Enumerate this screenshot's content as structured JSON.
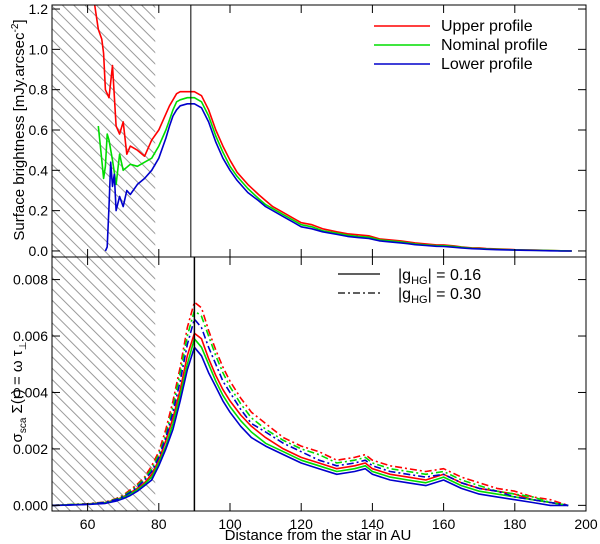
{
  "chart_data": [
    {
      "type": "line",
      "panel": "top",
      "ylabel": "Surface brightness [mJy.arcsec^-2]",
      "ylabel_main": "Surface brightness [mJy.arcsec",
      "ylabel_sup": "-2",
      "ylabel_end": "]",
      "xlim": [
        50,
        200
      ],
      "ylim": [
        -0.03,
        1.22
      ],
      "yticks": [
        0.0,
        0.2,
        0.4,
        0.6,
        0.8,
        1.0,
        1.2
      ],
      "ytick_labels": [
        "0.0",
        "0.2",
        "0.4",
        "0.6",
        "0.8",
        "1.0",
        "1.2"
      ],
      "hatched_region": [
        50,
        79
      ],
      "vline_x": 89,
      "legend": [
        {
          "label": "Upper profile",
          "color": "#ff0000"
        },
        {
          "label": "Nominal profile",
          "color": "#00dd00"
        },
        {
          "label": "Lower profile",
          "color": "#0000cc"
        }
      ],
      "series": [
        {
          "name": "Upper profile",
          "color": "#ff0000",
          "x": [
            62,
            63,
            64,
            64.5,
            65,
            66,
            67,
            68,
            69,
            70,
            71,
            72,
            74,
            76,
            78,
            80,
            82,
            83,
            84,
            85,
            86,
            88,
            90,
            92,
            94,
            96,
            98,
            100,
            102,
            105,
            108,
            110,
            112,
            115,
            118,
            120,
            123,
            126,
            130,
            133,
            136,
            139,
            142,
            145,
            148,
            150,
            152,
            155,
            158,
            160,
            163,
            165,
            168,
            170,
            172,
            175,
            178,
            180,
            183,
            186,
            190,
            193,
            196
          ],
          "y": [
            1.22,
            1.1,
            1.05,
            0.98,
            0.8,
            0.76,
            0.92,
            0.62,
            0.58,
            0.64,
            0.48,
            0.52,
            0.5,
            0.47,
            0.55,
            0.6,
            0.68,
            0.72,
            0.75,
            0.78,
            0.79,
            0.79,
            0.79,
            0.77,
            0.7,
            0.6,
            0.52,
            0.45,
            0.39,
            0.33,
            0.28,
            0.25,
            0.22,
            0.19,
            0.16,
            0.14,
            0.13,
            0.11,
            0.095,
            0.085,
            0.08,
            0.075,
            0.06,
            0.055,
            0.05,
            0.045,
            0.04,
            0.035,
            0.03,
            0.03,
            0.025,
            0.02,
            0.015,
            0.015,
            0.012,
            0.01,
            0.008,
            0.006,
            0.005,
            0.004,
            0.002,
            0.001,
            0.0
          ]
        },
        {
          "name": "Nominal profile",
          "color": "#00dd00",
          "x": [
            63,
            64,
            64.5,
            65,
            65.5,
            66,
            67,
            68,
            69,
            70,
            72,
            74,
            76,
            78,
            80,
            82,
            83,
            84,
            85,
            86,
            88,
            90,
            92,
            94,
            96,
            98,
            100,
            102,
            105,
            108,
            110,
            112,
            115,
            118,
            120,
            123,
            126,
            130,
            133,
            136,
            139,
            142,
            145,
            148,
            150,
            152,
            155,
            158,
            160,
            163,
            165,
            168,
            170,
            172,
            175,
            178,
            180,
            183,
            186,
            190,
            193,
            196
          ],
          "y": [
            0.62,
            0.45,
            0.36,
            0.42,
            0.58,
            0.55,
            0.45,
            0.33,
            0.48,
            0.4,
            0.43,
            0.42,
            0.44,
            0.46,
            0.52,
            0.6,
            0.65,
            0.7,
            0.74,
            0.75,
            0.76,
            0.76,
            0.74,
            0.67,
            0.57,
            0.49,
            0.42,
            0.37,
            0.31,
            0.26,
            0.23,
            0.21,
            0.18,
            0.15,
            0.13,
            0.12,
            0.1,
            0.088,
            0.078,
            0.072,
            0.068,
            0.055,
            0.05,
            0.045,
            0.04,
            0.035,
            0.03,
            0.026,
            0.026,
            0.022,
            0.018,
            0.013,
            0.012,
            0.01,
            0.008,
            0.006,
            0.005,
            0.004,
            0.003,
            0.002,
            0.001,
            0.0
          ]
        },
        {
          "name": "Lower profile",
          "color": "#0000cc",
          "x": [
            65,
            65.5,
            66,
            66.5,
            67,
            67.5,
            68,
            69,
            70,
            71,
            72,
            74,
            76,
            78,
            80,
            82,
            83,
            84,
            85,
            86,
            88,
            90,
            92,
            94,
            96,
            98,
            100,
            102,
            105,
            108,
            110,
            112,
            115,
            118,
            120,
            123,
            126,
            130,
            133,
            136,
            139,
            142,
            145,
            148,
            150,
            152,
            155,
            158,
            160,
            163,
            165,
            168,
            170,
            172,
            175,
            178,
            180,
            183,
            186,
            190,
            193,
            196
          ],
          "y": [
            0.0,
            0.02,
            0.22,
            0.44,
            0.32,
            0.38,
            0.2,
            0.27,
            0.22,
            0.3,
            0.28,
            0.33,
            0.36,
            0.4,
            0.46,
            0.56,
            0.62,
            0.67,
            0.7,
            0.72,
            0.73,
            0.73,
            0.71,
            0.64,
            0.54,
            0.46,
            0.4,
            0.35,
            0.29,
            0.25,
            0.22,
            0.2,
            0.17,
            0.14,
            0.12,
            0.11,
            0.095,
            0.082,
            0.072,
            0.066,
            0.062,
            0.05,
            0.045,
            0.04,
            0.036,
            0.031,
            0.027,
            0.023,
            0.022,
            0.018,
            0.015,
            0.011,
            0.01,
            0.008,
            0.006,
            0.005,
            0.004,
            0.003,
            0.002,
            0.001,
            0.0,
            0.0
          ]
        }
      ]
    },
    {
      "type": "line",
      "panel": "bottom",
      "xlabel": "Distance from the star in AU",
      "ylabel": "σ_sca Σ(r) = ω τ_⊥",
      "ylabel_parts": {
        "sigma": "σ",
        "sca": "sca",
        "mid": " Σ(r) = ω τ",
        "perp": "⊥"
      },
      "xlim": [
        50,
        200
      ],
      "ylim": [
        -0.0002,
        0.0088
      ],
      "xticks": [
        60,
        80,
        100,
        120,
        140,
        160,
        180,
        200
      ],
      "xtick_labels": [
        "60",
        "80",
        "100",
        "120",
        "140",
        "160",
        "180",
        "200"
      ],
      "yticks": [
        0.0,
        0.002,
        0.004,
        0.006,
        0.008
      ],
      "ytick_labels": [
        "0.000",
        "0.002",
        "0.004",
        "0.006",
        "0.008"
      ],
      "hatched_region": [
        50,
        79
      ],
      "vline_x": 90,
      "legend": [
        {
          "style": "solid",
          "prefix": "|g",
          "sub": "HG",
          "suffix": "| = 0.16"
        },
        {
          "style": "dashdot",
          "prefix": "|g",
          "sub": "HG",
          "suffix": "| = 0.30"
        }
      ],
      "series": [
        {
          "name": "Upper, |gHG|=0.16",
          "color": "#ff0000",
          "dash": "solid",
          "x": [
            50,
            55,
            60,
            65,
            68,
            70,
            72,
            74,
            76,
            78,
            80,
            82,
            84,
            86,
            88,
            90,
            92,
            94,
            96,
            98,
            100,
            103,
            106,
            110,
            115,
            120,
            125,
            130,
            135,
            138,
            140,
            145,
            150,
            155,
            160,
            165,
            170,
            175,
            180,
            185,
            190,
            195
          ],
          "y": [
            0.0,
            2e-05,
            5e-05,
            0.0001,
            0.0002,
            0.0003,
            0.00045,
            0.0006,
            0.0008,
            0.0011,
            0.0016,
            0.0023,
            0.0031,
            0.0041,
            0.0053,
            0.0061,
            0.0059,
            0.0052,
            0.0046,
            0.0041,
            0.0037,
            0.0032,
            0.0028,
            0.0024,
            0.002,
            0.0017,
            0.0015,
            0.0013,
            0.0014,
            0.0015,
            0.0013,
            0.0011,
            0.001,
            0.0009,
            0.0011,
            0.0008,
            0.0006,
            0.0005,
            0.0004,
            0.0002,
            0.0001,
            0.0
          ]
        },
        {
          "name": "Nominal, |gHG|=0.16",
          "color": "#00dd00",
          "dash": "solid",
          "x": [
            50,
            55,
            60,
            65,
            68,
            70,
            72,
            74,
            76,
            78,
            80,
            82,
            84,
            86,
            88,
            90,
            92,
            94,
            96,
            98,
            100,
            103,
            106,
            110,
            115,
            120,
            125,
            130,
            135,
            138,
            140,
            145,
            150,
            155,
            160,
            165,
            170,
            175,
            180,
            185,
            190,
            195
          ],
          "y": [
            0.0,
            2e-05,
            4e-05,
            9e-05,
            0.00018,
            0.00028,
            0.0004,
            0.00055,
            0.00075,
            0.001,
            0.0015,
            0.0021,
            0.0029,
            0.0039,
            0.005,
            0.0059,
            0.0056,
            0.005,
            0.0044,
            0.0039,
            0.0035,
            0.003,
            0.0026,
            0.0022,
            0.0019,
            0.0016,
            0.0014,
            0.0012,
            0.0013,
            0.0014,
            0.0012,
            0.001,
            0.0009,
            0.0008,
            0.001,
            0.0007,
            0.0005,
            0.0004,
            0.0003,
            0.0002,
            0.0001,
            0.0
          ]
        },
        {
          "name": "Lower, |gHG|=0.16",
          "color": "#0000cc",
          "dash": "solid",
          "x": [
            50,
            55,
            60,
            65,
            68,
            70,
            72,
            74,
            76,
            78,
            80,
            82,
            84,
            86,
            88,
            90,
            92,
            94,
            96,
            98,
            100,
            103,
            106,
            110,
            115,
            120,
            125,
            130,
            135,
            138,
            140,
            145,
            150,
            155,
            160,
            165,
            170,
            175,
            180,
            185,
            190,
            195
          ],
          "y": [
            0.0,
            1e-05,
            3e-05,
            7e-05,
            0.00015,
            0.00024,
            0.00035,
            0.0005,
            0.0007,
            0.0009,
            0.0014,
            0.002,
            0.0027,
            0.0037,
            0.0048,
            0.0056,
            0.0053,
            0.0047,
            0.0042,
            0.0037,
            0.0033,
            0.0028,
            0.0024,
            0.0021,
            0.0018,
            0.0015,
            0.0013,
            0.0011,
            0.0012,
            0.0013,
            0.0011,
            0.0009,
            0.0008,
            0.0007,
            0.0009,
            0.0006,
            0.0004,
            0.0003,
            0.0002,
            0.0001,
            0.0,
            0.0
          ]
        },
        {
          "name": "Upper, |gHG|=0.30",
          "color": "#ff0000",
          "dash": "dashdot",
          "x": [
            50,
            55,
            60,
            65,
            68,
            70,
            72,
            74,
            76,
            78,
            80,
            82,
            84,
            86,
            88,
            90,
            92,
            94,
            96,
            98,
            100,
            103,
            106,
            110,
            115,
            120,
            125,
            130,
            135,
            138,
            140,
            145,
            150,
            155,
            160,
            165,
            170,
            175,
            180,
            185,
            190,
            195
          ],
          "y": [
            0.0,
            3e-05,
            6e-05,
            0.00012,
            0.00024,
            0.00036,
            0.00055,
            0.00075,
            0.001,
            0.0014,
            0.0019,
            0.0027,
            0.0037,
            0.0049,
            0.0063,
            0.0072,
            0.007,
            0.0062,
            0.0055,
            0.0049,
            0.0044,
            0.0038,
            0.0033,
            0.0029,
            0.0024,
            0.0021,
            0.0019,
            0.0016,
            0.0017,
            0.0018,
            0.0016,
            0.0014,
            0.0013,
            0.0012,
            0.0013,
            0.001,
            0.0008,
            0.0006,
            0.0005,
            0.0003,
            0.0002,
            0.0
          ]
        },
        {
          "name": "Nominal, |gHG|=0.30",
          "color": "#00dd00",
          "dash": "dashdot",
          "x": [
            50,
            55,
            60,
            65,
            68,
            70,
            72,
            74,
            76,
            78,
            80,
            82,
            84,
            86,
            88,
            90,
            92,
            94,
            96,
            98,
            100,
            103,
            106,
            110,
            115,
            120,
            125,
            130,
            135,
            138,
            140,
            145,
            150,
            155,
            160,
            165,
            170,
            175,
            180,
            185,
            190,
            195
          ],
          "y": [
            0.0,
            3e-05,
            5e-05,
            0.00011,
            0.00022,
            0.00034,
            0.0005,
            0.0007,
            0.00095,
            0.0013,
            0.0018,
            0.0025,
            0.0035,
            0.0047,
            0.006,
            0.0069,
            0.0067,
            0.006,
            0.0053,
            0.0047,
            0.0042,
            0.0036,
            0.0031,
            0.0027,
            0.0023,
            0.002,
            0.0018,
            0.0015,
            0.0016,
            0.0017,
            0.0015,
            0.0013,
            0.0012,
            0.0011,
            0.0012,
            0.0009,
            0.0007,
            0.0005,
            0.0004,
            0.0003,
            0.0001,
            0.0
          ]
        },
        {
          "name": "Lower, |gHG|=0.30",
          "color": "#0000cc",
          "dash": "dashdot",
          "x": [
            50,
            55,
            60,
            65,
            68,
            70,
            72,
            74,
            76,
            78,
            80,
            82,
            84,
            86,
            88,
            90,
            92,
            94,
            96,
            98,
            100,
            103,
            106,
            110,
            115,
            120,
            125,
            130,
            135,
            138,
            140,
            145,
            150,
            155,
            160,
            165,
            170,
            175,
            180,
            185,
            190,
            195
          ],
          "y": [
            0.0,
            2e-05,
            4e-05,
            0.0001,
            0.0002,
            0.00031,
            0.00046,
            0.00065,
            0.0009,
            0.0012,
            0.0017,
            0.0024,
            0.0033,
            0.0044,
            0.0057,
            0.0066,
            0.0063,
            0.0056,
            0.005,
            0.0044,
            0.004,
            0.0034,
            0.0029,
            0.0026,
            0.0022,
            0.0019,
            0.0016,
            0.0014,
            0.0015,
            0.0016,
            0.0014,
            0.0012,
            0.0011,
            0.001,
            0.0011,
            0.0008,
            0.0006,
            0.0005,
            0.0003,
            0.0002,
            0.0001,
            0.0
          ]
        }
      ]
    }
  ]
}
